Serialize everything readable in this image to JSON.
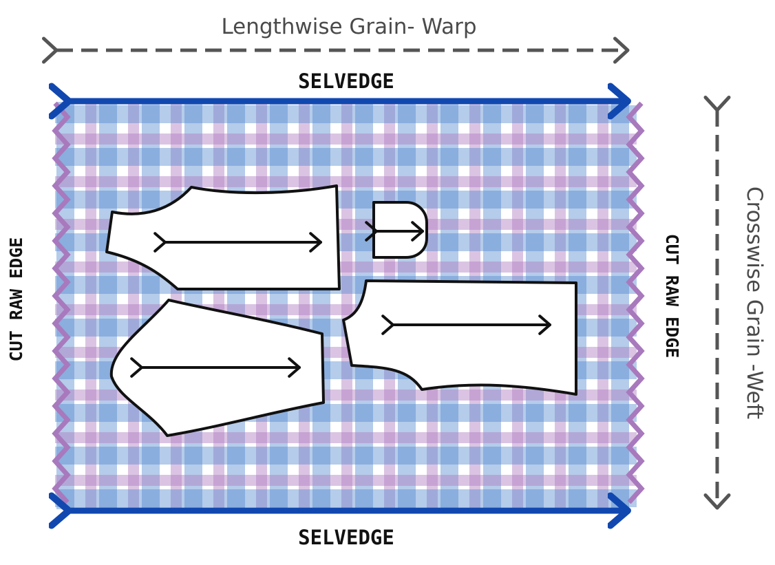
{
  "labels": {
    "warp": "Lengthwise Grain- Warp",
    "weft": "Crosswise Grain -Weft",
    "selvedge_top": "SELVEDGE",
    "selvedge_bottom": "SELVEDGE",
    "raw_edge_left": "CUT RAW EDGE",
    "raw_edge_right": "CUT RAW EDGE"
  },
  "colors": {
    "background": "#ffffff",
    "plaid_blue": "#4f86cc",
    "plaid_purple": "#b07cc0",
    "selvedge_line": "#1148b0",
    "raw_edge_zigzag": "#a879bd",
    "grain_arrow": "#555555",
    "pattern_piece_fill": "#ffffff",
    "pattern_piece_outline": "#111111"
  },
  "icons": {
    "warp_arrow": "dashed-double-arrow-icon",
    "weft_arrow": "dashed-double-arrow-icon",
    "selvedge_arrow": "double-arrow-icon",
    "grainline": "grainline-arrow-icon"
  },
  "pattern_pieces": [
    {
      "name": "upper-left-piece",
      "grainline": true
    },
    {
      "name": "small-facing-piece",
      "grainline": true
    },
    {
      "name": "lower-left-piece",
      "grainline": true
    },
    {
      "name": "right-piece",
      "grainline": true
    }
  ]
}
